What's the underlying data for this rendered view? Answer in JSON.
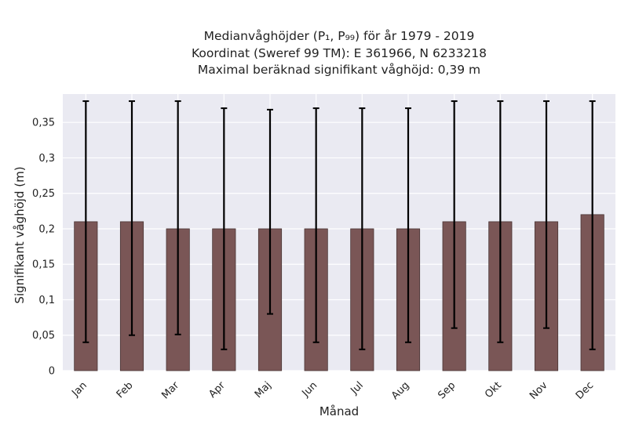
{
  "chart_data": {
    "type": "bar",
    "title_lines": [
      "Medianvåghöjder (P₁, P₉₉) för år 1979 - 2019",
      "Koordinat (Sweref 99 TM): E 361966, N 6233218",
      "Maximal beräknad signifikant våghöjd: 0,39 m"
    ],
    "xlabel": "Månad",
    "ylabel": "Signifikant våghöjd (m)",
    "categories": [
      "Jan",
      "Feb",
      "Mar",
      "Apr",
      "Maj",
      "Jun",
      "Jul",
      "Aug",
      "Sep",
      "Okt",
      "Nov",
      "Dec"
    ],
    "values": [
      0.21,
      0.21,
      0.2,
      0.2,
      0.2,
      0.2,
      0.2,
      0.2,
      0.21,
      0.21,
      0.21,
      0.22
    ],
    "p1": [
      0.04,
      0.05,
      0.051,
      0.03,
      0.08,
      0.04,
      0.03,
      0.04,
      0.06,
      0.04,
      0.06,
      0.03
    ],
    "p99": [
      0.38,
      0.38,
      0.38,
      0.37,
      0.368,
      0.37,
      0.37,
      0.37,
      0.38,
      0.38,
      0.38,
      0.38
    ],
    "ylim": [
      0,
      0.39
    ],
    "yticks": [
      0,
      0.05,
      0.1,
      0.15,
      0.2,
      0.25,
      0.3,
      0.35
    ],
    "ytick_labels": [
      "0",
      "0,05",
      "0,1",
      "0,15",
      "0,2",
      "0,25",
      "0,3",
      "0,35"
    ],
    "bar_color": "#7a5656",
    "errorbar_color": "#000000",
    "background_color": "#eaeaf2",
    "grid": true
  }
}
